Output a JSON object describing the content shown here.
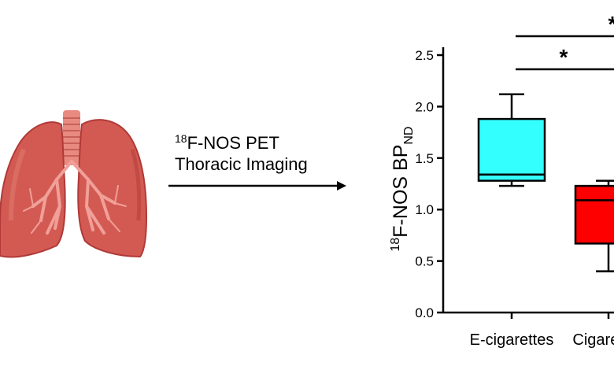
{
  "annotation": {
    "isotope": "18",
    "line1": "F-NOS PET",
    "line2": "Thoracic Imaging"
  },
  "chart_data": {
    "type": "box",
    "ylabel_prefix": "18",
    "ylabel_main": "F-NOS BP",
    "ylabel_sub": "ND",
    "ylim": [
      0,
      2.5
    ],
    "yticks": [
      "0.0",
      "0.5",
      "1.0",
      "1.5",
      "2.0",
      "2.5"
    ],
    "categories": [
      "E-cigarettes",
      "Cigarettes"
    ],
    "boxes": [
      {
        "category": "E-cigarettes",
        "min": 1.23,
        "q1": 1.28,
        "median": 1.34,
        "q3": 1.88,
        "max": 2.12,
        "color": "#33ffff"
      },
      {
        "category": "Cigarettes",
        "min": 0.4,
        "q1": 0.67,
        "median": 1.09,
        "q3": 1.23,
        "max": 1.28,
        "color": "#ff0000"
      }
    ],
    "significance": [
      {
        "label": "*",
        "from": "E-cigarettes",
        "to": "Cigarettes",
        "level": "lower"
      },
      {
        "label": "*",
        "from": "E-cigarettes",
        "to": "Cigarettes",
        "level": "upper"
      }
    ]
  },
  "colors": {
    "lung_dark": "#b03a38",
    "lung_main": "#d35a52",
    "lung_light": "#e07a70",
    "trachea": "#e88a80"
  }
}
